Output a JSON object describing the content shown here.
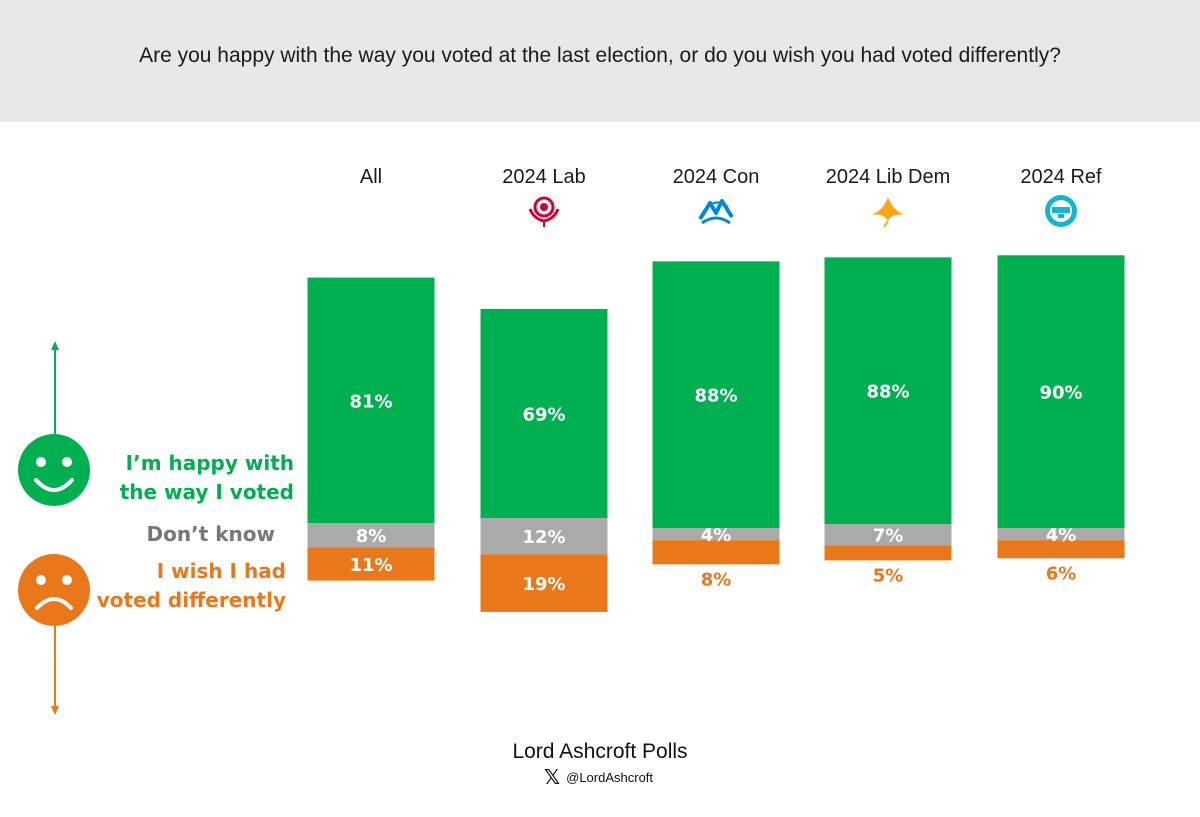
{
  "question": "Are you happy with the way you voted at the last election, or do you wish you had voted differently?",
  "colors": {
    "happy": "#00b050",
    "dont_know": "#aaaaaa",
    "wish": "#e8781a",
    "dont_know_text": "#777777"
  },
  "legend": {
    "happy_line1": "I’m happy with",
    "happy_line2": "the way I voted",
    "dont_know": "Don’t know",
    "wish_line1": "I wish I had",
    "wish_line2": "voted differently"
  },
  "icons": {
    "happy": "smiley-face-icon",
    "sad": "sad-face-icon",
    "up": "arrow-up-icon",
    "down": "arrow-down-icon",
    "lab": "labour-rose-icon",
    "con": "conservative-tree-icon",
    "libdem": "lib-dem-bird-icon",
    "ref": "reform-uk-icon"
  },
  "chart_data": {
    "type": "bar",
    "stacked": true,
    "categories": [
      "All",
      "2024 Lab",
      "2024 Con",
      "2024 Lib Dem",
      "2024 Ref"
    ],
    "series": [
      {
        "name": "I’m happy with the way I voted",
        "values": [
          81,
          69,
          88,
          88,
          90
        ],
        "labels": [
          "81%",
          "69%",
          "88%",
          "88%",
          "90%"
        ]
      },
      {
        "name": "Don’t know",
        "values": [
          8,
          12,
          4,
          7,
          4
        ],
        "labels": [
          "8%",
          "12%",
          "4%",
          "7%",
          "4%"
        ]
      },
      {
        "name": "I wish I had voted differently",
        "values": [
          11,
          19,
          8,
          5,
          6
        ],
        "labels": [
          "11%",
          "19%",
          "8%",
          "5%",
          "6%"
        ]
      }
    ],
    "grid": false,
    "legend": "left"
  },
  "footer": {
    "title": "Lord Ashcroft Polls",
    "handle": "@LordAshcroft",
    "x_logo": "𝕏"
  }
}
